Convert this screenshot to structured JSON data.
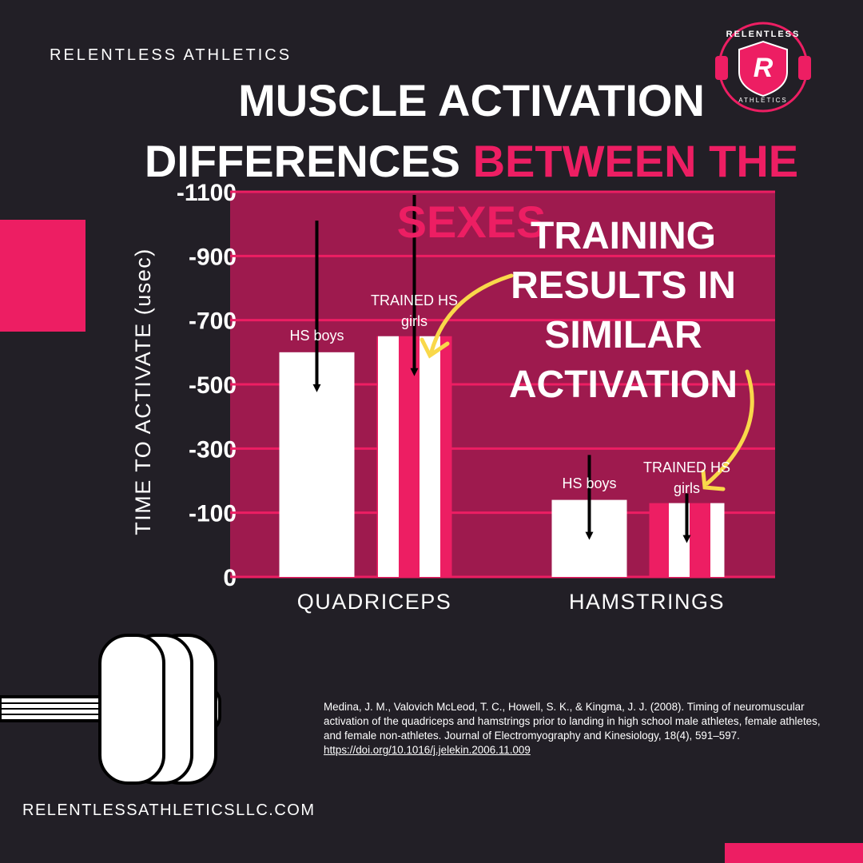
{
  "brand": "RELENTLESS ATHLETICS",
  "logo": {
    "top": "RELENTLESS",
    "bottom": "ATHLETICS",
    "letter": "R"
  },
  "website": "RELENTLESSATHLETICSLLC.COM",
  "citation": {
    "text": "Medina, J. M., Valovich McLeod, T. C., Howell, S. K., & Kingma, J. J. (2008). Timing of neuromuscular activation of the quadriceps and hamstrings prior to landing in high school male athletes, female athletes, and female non-athletes. Journal of Electromyography and Kinesiology, 18(4), 591–597.",
    "link": "https://doi.org/10.1016/j.jelekin.2006.11.009"
  },
  "chart_data": {
    "type": "bar",
    "title": [
      "MUSCLE ACTIVATION",
      "DIFFERENCES",
      "BETWEEN THE SEXES"
    ],
    "y_label": "TIME TO ACTIVATE (usec)",
    "annotation": "TRAINING RESULTS IN SIMILAR ACTIVATION",
    "categories": [
      "QUADRICEPS",
      "HAMSTRINGS"
    ],
    "series": [
      {
        "name": "HS boys",
        "color": "#ffffff",
        "values": [
          -600,
          -140
        ],
        "errors": [
          410,
          140
        ]
      },
      {
        "name": "TRAINED HS girls",
        "color": "#ed1e63",
        "values": [
          -650,
          -130
        ],
        "errors": [
          440,
          30
        ]
      }
    ],
    "ylim": [
      0,
      -1100
    ],
    "yticks": [
      0,
      -100,
      -300,
      -500,
      -700,
      -900,
      -1100
    ],
    "grid": true
  }
}
